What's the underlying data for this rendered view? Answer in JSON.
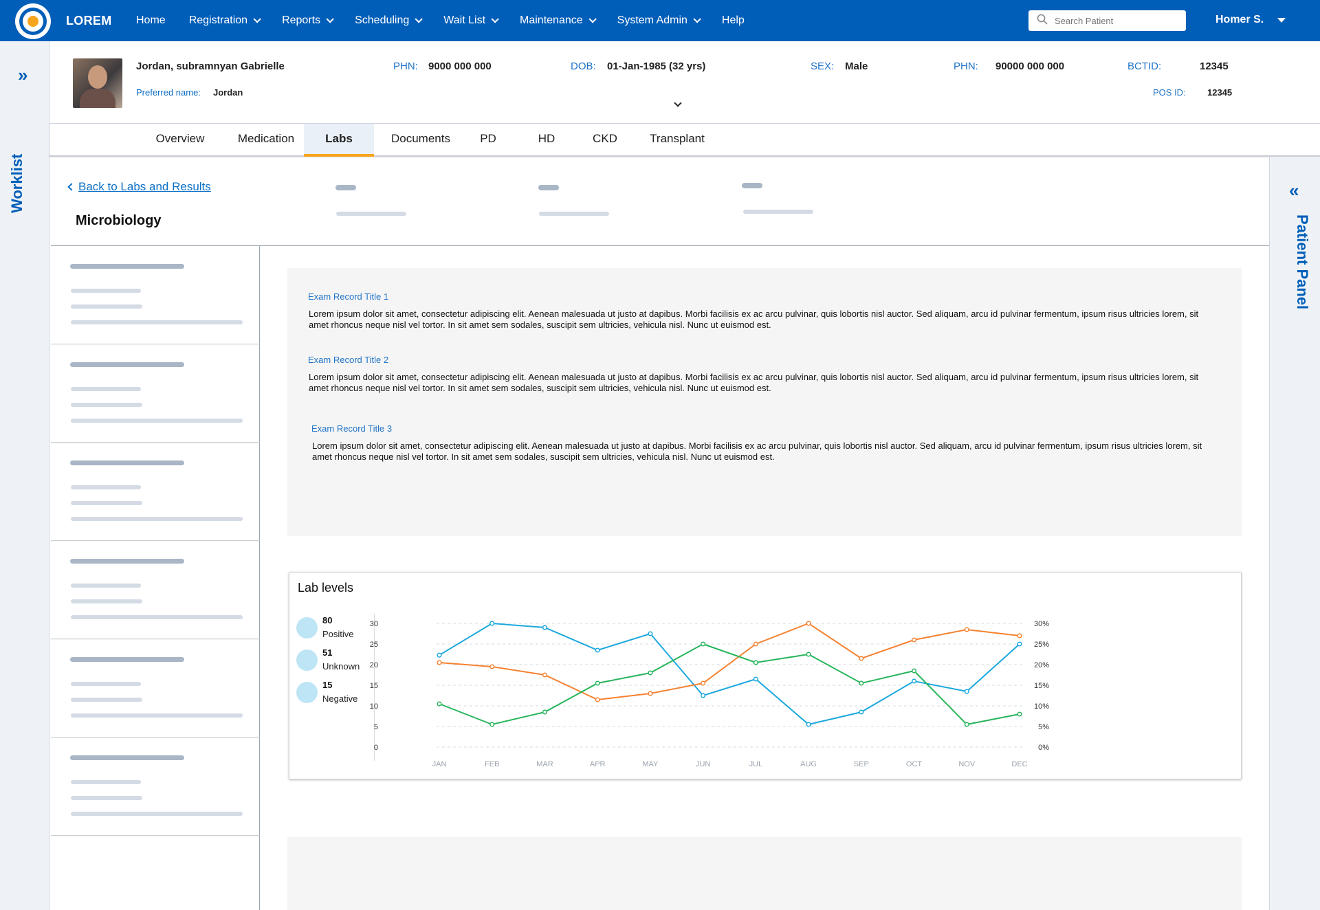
{
  "brand": "LOREM",
  "nav": {
    "items": [
      {
        "label": "Home",
        "dropdown": false
      },
      {
        "label": "Registration",
        "dropdown": true
      },
      {
        "label": "Reports",
        "dropdown": true
      },
      {
        "label": "Scheduling",
        "dropdown": true
      },
      {
        "label": "Wait List",
        "dropdown": true
      },
      {
        "label": "Maintenance",
        "dropdown": true
      },
      {
        "label": "System Admin",
        "dropdown": true
      },
      {
        "label": "Help",
        "dropdown": false
      }
    ],
    "search_placeholder": "Search Patient",
    "user": "Homer S."
  },
  "worklist_label": "Worklist",
  "patient_panel_label": "Patient Panel",
  "patient": {
    "name": "Jordan, subramnyan Gabrielle",
    "preferred_label": "Preferred name:",
    "preferred_value": "Jordan",
    "phn_label": "PHN:",
    "phn_value": "9000 000 000",
    "dob_label": "DOB:",
    "dob_value": "01-Jan-1985 (32 yrs)",
    "sex_label": "SEX:",
    "sex_value": "Male",
    "phn2_label": "PHN:",
    "phn2_value": "90000 000 000",
    "bctid_label": "BCTID:",
    "bctid_value": "12345",
    "posid_label": "POS ID:",
    "posid_value": "12345"
  },
  "tabs": [
    {
      "label": "Overview",
      "active": false
    },
    {
      "label": "Medication",
      "active": false
    },
    {
      "label": "Labs",
      "active": true
    },
    {
      "label": "Documents",
      "active": false
    },
    {
      "label": "PD",
      "active": false
    },
    {
      "label": "HD",
      "active": false
    },
    {
      "label": "CKD",
      "active": false
    },
    {
      "label": "Transplant",
      "active": false
    }
  ],
  "back_link": "Back to Labs and Results",
  "section_title": "Microbiology",
  "exam_records": [
    {
      "title": "Exam Record Title 1",
      "body": "Lorem ipsum dolor sit amet, consectetur adipiscing elit. Aenean malesuada ut justo at dapibus. Morbi facilisis ex ac arcu pulvinar, quis lobortis nisl auctor. Sed aliquam, arcu id pulvinar fermentum, ipsum risus ultricies lorem, sit amet rhoncus neque nisl vel tortor. In sit amet sem sodales, suscipit sem ultricies, vehicula nisl. Nunc ut euismod est."
    },
    {
      "title": "Exam Record Title 2",
      "body": "Lorem ipsum dolor sit amet, consectetur adipiscing elit. Aenean malesuada ut justo at dapibus. Morbi facilisis ex ac arcu pulvinar, quis lobortis nisl auctor. Sed aliquam, arcu id pulvinar fermentum, ipsum risus ultricies lorem, sit amet rhoncus neque nisl vel tortor. In sit amet sem sodales, suscipit sem ultricies, vehicula nisl. Nunc ut euismod est."
    },
    {
      "title": "Exam Record Title 3",
      "body": "Lorem ipsum dolor sit amet, consectetur adipiscing elit. Aenean malesuada ut justo at dapibus. Morbi facilisis ex ac arcu pulvinar, quis lobortis nisl auctor. Sed aliquam, arcu id pulvinar fermentum, ipsum risus ultricies lorem, sit amet rhoncus neque nisl vel tortor. In sit amet sem sodales, suscipit sem ultricies, vehicula nisl. Nunc ut euismod est."
    }
  ],
  "legend": [
    {
      "value": "80",
      "label": "Positive"
    },
    {
      "value": "51",
      "label": "Unknown"
    },
    {
      "value": "15",
      "label": "Negative"
    }
  ],
  "colors": {
    "primary": "#005eb8",
    "accent": "#f7a51c",
    "series_blue": "#1ba8dd",
    "series_orange": "#f58231",
    "series_green": "#27b55b"
  },
  "chart_data": {
    "type": "line",
    "title": "Lab levels",
    "categories": [
      "JAN",
      "FEB",
      "MAR",
      "APR",
      "MAY",
      "JUN",
      "JUL",
      "AUG",
      "SEP",
      "OCT",
      "NOV",
      "DEC"
    ],
    "y_ticks": [
      "30",
      "25",
      "20",
      "15",
      "10",
      "5",
      "0"
    ],
    "y2_ticks": [
      "30%",
      "25%",
      "20%",
      "15%",
      "10%",
      "5%",
      "0%"
    ],
    "ylim": [
      0,
      30
    ],
    "grid": true,
    "series": [
      {
        "color": "#1ba8dd",
        "values": [
          22.3,
          30,
          29,
          23.5,
          27.5,
          12.5,
          16.5,
          5.5,
          8.5,
          16,
          13.5,
          25
        ]
      },
      {
        "color": "#f58231",
        "values": [
          20.5,
          19.5,
          17.5,
          11.5,
          13,
          15.5,
          25,
          30,
          21.5,
          26,
          28.5,
          27
        ]
      },
      {
        "color": "#27b55b",
        "values": [
          10.5,
          5.5,
          8.5,
          15.5,
          18,
          25,
          20.5,
          22.5,
          15.5,
          18.5,
          5.5,
          8
        ]
      }
    ]
  }
}
